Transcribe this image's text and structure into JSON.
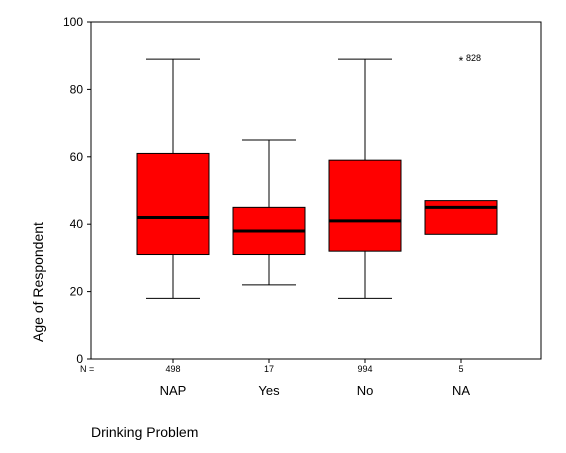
{
  "chart_data": {
    "type": "boxplot",
    "xlabel": "Drinking Problem",
    "ylabel": "Age of Respondent",
    "ylim": [
      0,
      100
    ],
    "yticks": [
      "0",
      "20",
      "40",
      "60",
      "80",
      "100"
    ],
    "n_prefix": "N =",
    "box_color": "#ff0000",
    "categories": [
      "NAP",
      "Yes",
      "No",
      "NA"
    ],
    "n": [
      "498",
      "17",
      "994",
      "5"
    ],
    "boxes": [
      {
        "category": "NAP",
        "whisker_low": 18,
        "q1": 31,
        "median": 42,
        "q3": 61,
        "whisker_high": 89
      },
      {
        "category": "Yes",
        "whisker_low": 22,
        "q1": 31,
        "median": 38,
        "q3": 45,
        "whisker_high": 65
      },
      {
        "category": "No",
        "whisker_low": 18,
        "q1": 32,
        "median": 41,
        "q3": 59,
        "whisker_high": 89
      },
      {
        "category": "NA",
        "whisker_low": 37,
        "q1": 37,
        "median": 45,
        "q3": 47,
        "whisker_high": 47
      }
    ],
    "outliers": [
      {
        "category": "NA",
        "value": 89,
        "marker": "*",
        "label": "828"
      }
    ]
  }
}
